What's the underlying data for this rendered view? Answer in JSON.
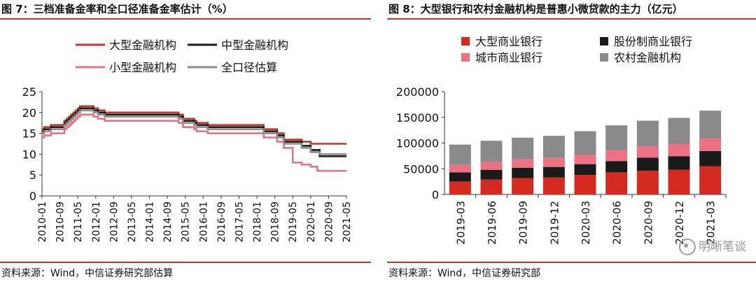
{
  "left": {
    "title": "图 7：三档准备金率和全口径准备金率估计（%）",
    "source": "资料来源：Wind，中信证券研究部估算"
  },
  "right": {
    "title": "图 8：大型银行和农村金融机构是普惠小微贷款的主力（亿元）",
    "source": "资料来源：Wind，中信证券研究部"
  },
  "watermark": "明晰笔谈",
  "chart_data": [
    {
      "type": "line",
      "title": "三档准备金率和全口径准备金率估计（%）",
      "ylim": [
        0,
        25
      ],
      "yticks": [
        0,
        5,
        10,
        15,
        20,
        25
      ],
      "xlim": [
        "2010-01",
        "2021-05"
      ],
      "xticks": [
        "2010-01",
        "2010-09",
        "2011-05",
        "2012-01",
        "2012-09",
        "2013-05",
        "2014-01",
        "2014-09",
        "2015-05",
        "2016-01",
        "2016-09",
        "2017-05",
        "2018-01",
        "2018-09",
        "2019-05",
        "2020-01",
        "2020-09",
        "2021-05"
      ],
      "legend": "top",
      "series": [
        {
          "name": "大型金融机构",
          "color": "#c0392b",
          "width": 2.6,
          "points": [
            [
              "2010-01",
              16
            ],
            [
              "2010-02",
              16.5
            ],
            [
              "2010-05",
              17
            ],
            [
              "2010-11",
              18
            ],
            [
              "2010-12",
              18.5
            ],
            [
              "2011-01",
              19
            ],
            [
              "2011-02",
              19.5
            ],
            [
              "2011-03",
              20
            ],
            [
              "2011-04",
              20.5
            ],
            [
              "2011-05",
              21
            ],
            [
              "2011-06",
              21.5
            ],
            [
              "2011-12",
              21
            ],
            [
              "2012-02",
              20.5
            ],
            [
              "2012-05",
              20
            ],
            [
              "2015-02",
              19.5
            ],
            [
              "2015-04",
              18.5
            ],
            [
              "2015-09",
              18
            ],
            [
              "2015-10",
              17.5
            ],
            [
              "2016-03",
              17
            ],
            [
              "2018-04",
              16
            ],
            [
              "2018-10",
              15
            ],
            [
              "2019-01",
              14
            ],
            [
              "2019-01",
              13.5
            ],
            [
              "2019-09",
              13
            ],
            [
              "2020-01",
              12.5
            ],
            [
              "2021-05",
              12.5
            ]
          ]
        },
        {
          "name": "中型金融机构",
          "color": "#1a1a1a",
          "width": 2.6,
          "points": [
            [
              "2010-01",
              15.5
            ],
            [
              "2010-02",
              16
            ],
            [
              "2010-05",
              16.5
            ],
            [
              "2010-11",
              17.5
            ],
            [
              "2010-12",
              18
            ],
            [
              "2011-01",
              18.5
            ],
            [
              "2011-02",
              19
            ],
            [
              "2011-03",
              19.5
            ],
            [
              "2011-04",
              20
            ],
            [
              "2011-05",
              20.5
            ],
            [
              "2011-06",
              21
            ],
            [
              "2011-12",
              20.5
            ],
            [
              "2012-02",
              20
            ],
            [
              "2012-05",
              19.5
            ],
            [
              "2015-02",
              19
            ],
            [
              "2015-04",
              18
            ],
            [
              "2015-09",
              17.5
            ],
            [
              "2015-10",
              17
            ],
            [
              "2016-03",
              16.5
            ],
            [
              "2018-04",
              15.5
            ],
            [
              "2018-10",
              14.5
            ],
            [
              "2019-01",
              13.5
            ],
            [
              "2019-01",
              13
            ],
            [
              "2019-09",
              12
            ],
            [
              "2020-01",
              11
            ],
            [
              "2020-05",
              9.5
            ],
            [
              "2021-05",
              9.5
            ]
          ]
        },
        {
          "name": "小型金融机构",
          "color": "#ec7182",
          "width": 2.6,
          "points": [
            [
              "2010-01",
              14
            ],
            [
              "2010-02",
              14.5
            ],
            [
              "2010-05",
              15
            ],
            [
              "2010-11",
              16
            ],
            [
              "2010-12",
              16.5
            ],
            [
              "2011-01",
              17
            ],
            [
              "2011-02",
              17.5
            ],
            [
              "2011-03",
              18
            ],
            [
              "2011-04",
              18.5
            ],
            [
              "2011-05",
              19
            ],
            [
              "2011-06",
              19.5
            ],
            [
              "2011-12",
              19
            ],
            [
              "2012-02",
              18.5
            ],
            [
              "2012-05",
              18
            ],
            [
              "2015-02",
              17.5
            ],
            [
              "2015-04",
              16.5
            ],
            [
              "2015-09",
              16
            ],
            [
              "2015-10",
              15.5
            ],
            [
              "2016-03",
              15
            ],
            [
              "2018-04",
              14
            ],
            [
              "2018-10",
              13
            ],
            [
              "2019-01",
              12
            ],
            [
              "2019-01",
              11.5
            ],
            [
              "2019-05",
              8
            ],
            [
              "2019-09",
              7.5
            ],
            [
              "2020-01",
              7
            ],
            [
              "2020-04",
              6
            ],
            [
              "2021-05",
              6
            ]
          ]
        },
        {
          "name": "全口径估算",
          "color": "#8c8c8c",
          "width": 2.6,
          "points": [
            [
              "2010-01",
              15
            ],
            [
              "2010-02",
              15.5
            ],
            [
              "2010-05",
              16
            ],
            [
              "2010-11",
              17
            ],
            [
              "2010-12",
              17.5
            ],
            [
              "2011-01",
              18
            ],
            [
              "2011-02",
              18.5
            ],
            [
              "2011-03",
              19
            ],
            [
              "2011-04",
              19.5
            ],
            [
              "2011-05",
              20
            ],
            [
              "2011-06",
              20.5
            ],
            [
              "2011-12",
              20
            ],
            [
              "2012-02",
              19.5
            ],
            [
              "2012-05",
              19
            ],
            [
              "2015-02",
              18.5
            ],
            [
              "2015-04",
              17.5
            ],
            [
              "2015-09",
              17
            ],
            [
              "2015-10",
              16.5
            ],
            [
              "2016-03",
              16
            ],
            [
              "2018-04",
              15
            ],
            [
              "2018-10",
              14
            ],
            [
              "2019-01",
              13
            ],
            [
              "2019-01",
              12.5
            ],
            [
              "2019-09",
              11.5
            ],
            [
              "2020-01",
              10.5
            ],
            [
              "2020-05",
              10
            ],
            [
              "2021-05",
              10
            ]
          ]
        }
      ]
    },
    {
      "type": "bar",
      "stacked": true,
      "title": "大型银行和农村金融机构是普惠小微贷款的主力（亿元）",
      "ylim": [
        0,
        200000
      ],
      "yticks": [
        0,
        50000,
        100000,
        150000,
        200000
      ],
      "categories": [
        "2019-03",
        "2019-06",
        "2019-09",
        "2019-12",
        "2020-03",
        "2020-06",
        "2020-09",
        "2020-12",
        "2021-03"
      ],
      "legend": "top",
      "series": [
        {
          "name": "大型商业银行",
          "color": "#d42a20",
          "values": [
            25000,
            29000,
            32000,
            33000,
            38000,
            43000,
            46000,
            48000,
            55000
          ]
        },
        {
          "name": "股份制商业银行",
          "color": "#1a1a1a",
          "values": [
            18000,
            19000,
            20000,
            20500,
            21000,
            22000,
            25500,
            26500,
            29500
          ]
        },
        {
          "name": "城市商业银行",
          "color": "#ec7182",
          "values": [
            15000,
            16000,
            16500,
            17500,
            18500,
            20500,
            22500,
            23500,
            24500
          ]
        },
        {
          "name": "农村金融机构",
          "color": "#8a8a8a",
          "values": [
            39000,
            40500,
            42000,
            43000,
            45500,
            49000,
            49500,
            51000,
            54000
          ]
        }
      ]
    }
  ]
}
